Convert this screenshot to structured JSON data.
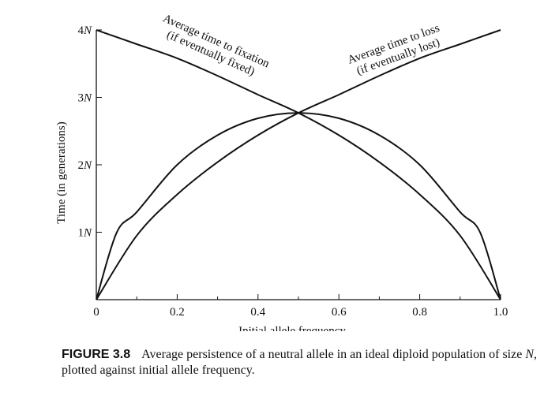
{
  "chart_data": {
    "type": "line",
    "xlabel": "Initial allele frequency",
    "ylabel": "Time (in generations)",
    "xlim": [
      0,
      1.0
    ],
    "ylim": [
      0,
      4
    ],
    "x_ticks": [
      "0",
      "0.2",
      "0.4",
      "0.6",
      "0.8",
      "1.0"
    ],
    "y_ticks": [
      {
        "coef": "1",
        "sym": "N",
        "value": 1
      },
      {
        "coef": "2",
        "sym": "N",
        "value": 2
      },
      {
        "coef": "3",
        "sym": "N",
        "value": 3
      },
      {
        "coef": "4",
        "sym": "N",
        "value": 4
      }
    ],
    "y_unit": "N generations",
    "series": [
      {
        "name_lines": [
          "Average time to fixation",
          "(if eventually fixed)"
        ],
        "x": [
          0,
          0.1,
          0.2,
          0.3,
          0.4,
          0.5,
          0.6,
          0.7,
          0.8,
          0.9,
          1.0
        ],
        "y": [
          4.0,
          3.79,
          3.58,
          3.32,
          3.04,
          2.77,
          2.44,
          2.04,
          1.56,
          0.95,
          0
        ]
      },
      {
        "name_lines": [
          "Average time to loss",
          "(if eventually lost)"
        ],
        "x": [
          0,
          0.1,
          0.2,
          0.3,
          0.4,
          0.5,
          0.6,
          0.7,
          0.8,
          0.9,
          1.0
        ],
        "y": [
          0,
          0.95,
          1.56,
          2.04,
          2.44,
          2.77,
          3.04,
          3.32,
          3.58,
          3.79,
          4.0
        ]
      },
      {
        "name_lines": [],
        "x": [
          0,
          0.05,
          0.1,
          0.2,
          0.3,
          0.4,
          0.5,
          0.6,
          0.7,
          0.8,
          0.9,
          0.95,
          1.0
        ],
        "y": [
          0,
          0.99,
          1.3,
          2.0,
          2.44,
          2.69,
          2.77,
          2.69,
          2.44,
          2.0,
          1.3,
          0.99,
          0
        ]
      }
    ]
  },
  "caption": {
    "figure_number": "FIGURE 3.8",
    "text_before": "Average persistence of a neutral allele in an ideal diploid population of size ",
    "symbol": "N",
    "text_after": ", plotted against initial allele frequency."
  }
}
